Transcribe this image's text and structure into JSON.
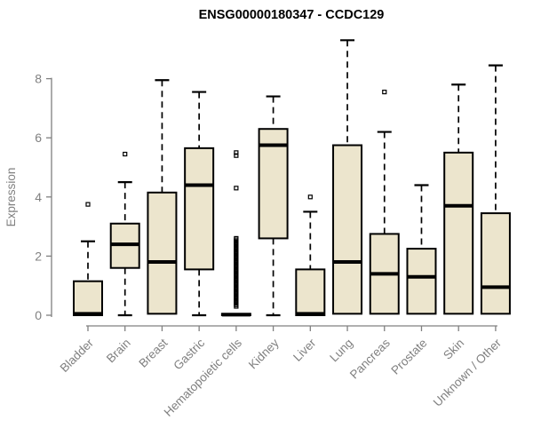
{
  "colors": {
    "background": "#FFFFFF",
    "box_fill": "#ECE5CD",
    "box_border": "#000000",
    "median": "#000000",
    "whisker": "#000000",
    "outlier": "#000000",
    "axis": "#808080",
    "tick_label": "#808080",
    "category_label": "#808080",
    "title": "#000000"
  },
  "chart_data": {
    "type": "boxplot",
    "title": "ENSG00000180347 - CCDC129",
    "ylabel": "Expression",
    "xlabel": "",
    "ylim": [
      0,
      9.5
    ],
    "yticks": [
      0,
      2,
      4,
      6,
      8
    ],
    "grid": false,
    "legend_position": "none",
    "categories": [
      "Bladder",
      "Brain",
      "Breast",
      "Gastric",
      "Hematopoietic cells",
      "Kidney",
      "Liver",
      "Lung",
      "Pancreas",
      "Prostate",
      "Skin",
      "Unknown / Other"
    ],
    "groups": [
      {
        "label": "Bladder",
        "whisker_low": 0,
        "q1": 0,
        "median": 0.05,
        "q3": 1.15,
        "whisker_high": 2.5,
        "outliers": [
          3.75
        ]
      },
      {
        "label": "Brain",
        "whisker_low": 0,
        "q1": 1.6,
        "median": 2.4,
        "q3": 3.1,
        "whisker_high": 4.5,
        "outliers": [
          5.45
        ]
      },
      {
        "label": "Breast",
        "whisker_low": 0.05,
        "q1": 0.05,
        "median": 1.8,
        "q3": 4.15,
        "whisker_high": 7.95,
        "outliers": []
      },
      {
        "label": "Gastric",
        "whisker_low": 0,
        "q1": 1.55,
        "median": 4.4,
        "q3": 5.65,
        "whisker_high": 7.55,
        "outliers": []
      },
      {
        "label": "Hematopoietic cells",
        "whisker_low": 0,
        "q1": 0,
        "median": 0.02,
        "q3": 0.05,
        "whisker_high": 0.1,
        "outliers": [
          0.3,
          0.35,
          0.4,
          0.45,
          0.5,
          0.55,
          0.6,
          0.65,
          0.7,
          0.75,
          0.8,
          0.85,
          0.9,
          0.95,
          1.0,
          1.05,
          1.1,
          1.15,
          1.2,
          1.25,
          1.3,
          1.35,
          1.4,
          1.45,
          1.5,
          1.55,
          1.6,
          1.65,
          1.7,
          1.75,
          1.8,
          1.85,
          1.9,
          1.95,
          2.0,
          2.05,
          2.1,
          2.15,
          2.2,
          2.25,
          2.3,
          2.35,
          2.4,
          2.45,
          2.5,
          2.55,
          2.6,
          4.3,
          5.4,
          5.5
        ]
      },
      {
        "label": "Kidney",
        "whisker_low": 0,
        "q1": 2.6,
        "median": 5.75,
        "q3": 6.3,
        "whisker_high": 7.4,
        "outliers": []
      },
      {
        "label": "Liver",
        "whisker_low": 0,
        "q1": 0,
        "median": 0.05,
        "q3": 1.55,
        "whisker_high": 3.5,
        "outliers": [
          4.0
        ]
      },
      {
        "label": "Lung",
        "whisker_low": 0.05,
        "q1": 0.05,
        "median": 1.8,
        "q3": 5.75,
        "whisker_high": 9.3,
        "outliers": []
      },
      {
        "label": "Pancreas",
        "whisker_low": 0.05,
        "q1": 0.05,
        "median": 1.4,
        "q3": 2.75,
        "whisker_high": 6.2,
        "outliers": [
          7.55
        ]
      },
      {
        "label": "Prostate",
        "whisker_low": 0.05,
        "q1": 0.05,
        "median": 1.3,
        "q3": 2.25,
        "whisker_high": 4.4,
        "outliers": []
      },
      {
        "label": "Skin",
        "whisker_low": 0.05,
        "q1": 0.05,
        "median": 3.7,
        "q3": 5.5,
        "whisker_high": 7.8,
        "outliers": []
      },
      {
        "label": "Unknown / Other",
        "whisker_low": 0.05,
        "q1": 0.05,
        "median": 0.95,
        "q3": 3.45,
        "whisker_high": 8.45,
        "outliers": []
      }
    ]
  }
}
